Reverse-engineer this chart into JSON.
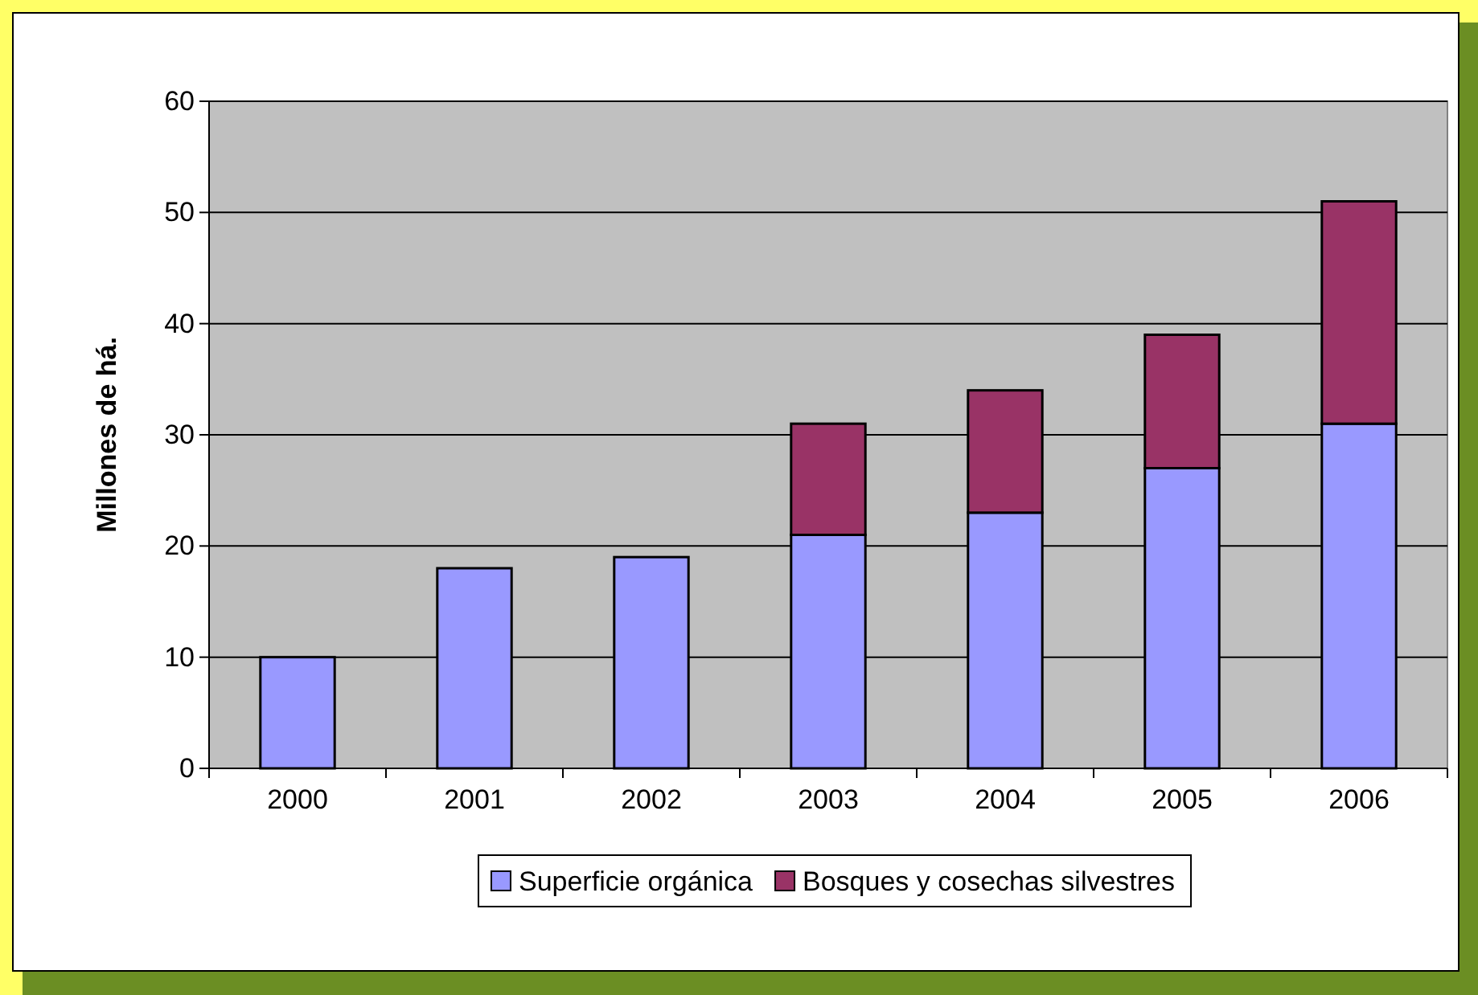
{
  "chart_data": {
    "type": "bar",
    "stacked": true,
    "ylabel": "Millones de há.",
    "categories": [
      "2000",
      "2001",
      "2002",
      "2003",
      "2004",
      "2005",
      "2006"
    ],
    "series": [
      {
        "name": "Superficie orgánica",
        "color": "#9999ff",
        "values": [
          10,
          18,
          19,
          21,
          23,
          27,
          31
        ]
      },
      {
        "name": "Bosques y cosechas silvestres",
        "color": "#993366",
        "values": [
          null,
          null,
          null,
          10,
          11,
          12,
          20
        ]
      }
    ],
    "ylim": [
      0,
      60
    ],
    "yticks": [
      0,
      10,
      20,
      30,
      40,
      50,
      60
    ],
    "grid": "y",
    "legend": "bottom"
  }
}
